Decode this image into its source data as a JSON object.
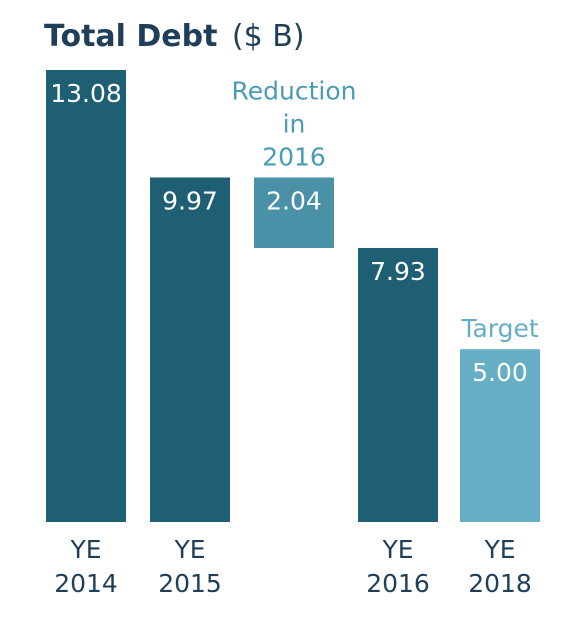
{
  "chart_data": {
    "type": "bar",
    "title": "Total Debt",
    "title_unit": "($ B)",
    "xlabel": "",
    "ylabel": "",
    "ylim": [
      0,
      13.08
    ],
    "grid": false,
    "legend": "none",
    "categories": [
      {
        "line1": "YE",
        "line2": "2014"
      },
      {
        "line1": "YE",
        "line2": "2015"
      },
      {
        "line1": "",
        "line2": ""
      },
      {
        "line1": "YE",
        "line2": "2016"
      },
      {
        "line1": "YE",
        "line2": "2018"
      }
    ],
    "bars": [
      {
        "kind": "total",
        "value": 13.08,
        "label": "13.08",
        "color": "#1f5f73"
      },
      {
        "kind": "total",
        "value": 9.97,
        "label": "9.97",
        "color": "#1f5f73"
      },
      {
        "kind": "reduction",
        "value": 2.04,
        "from": 9.97,
        "label": "2.04",
        "color": "#4a91a8"
      },
      {
        "kind": "total",
        "value": 7.93,
        "label": "7.93",
        "color": "#1f5f73"
      },
      {
        "kind": "target",
        "value": 5.0,
        "label": "5.00",
        "color": "#66aec6"
      }
    ],
    "annotations": [
      {
        "bar": 2,
        "lines": [
          "Reduction",
          "in",
          "2016"
        ],
        "color": "#4a9bb5"
      },
      {
        "bar": 4,
        "lines": [
          "Target"
        ],
        "color": "#66aec6"
      }
    ]
  },
  "colors": {
    "title": "#1f3f59",
    "category_text": "#1f3f59"
  }
}
